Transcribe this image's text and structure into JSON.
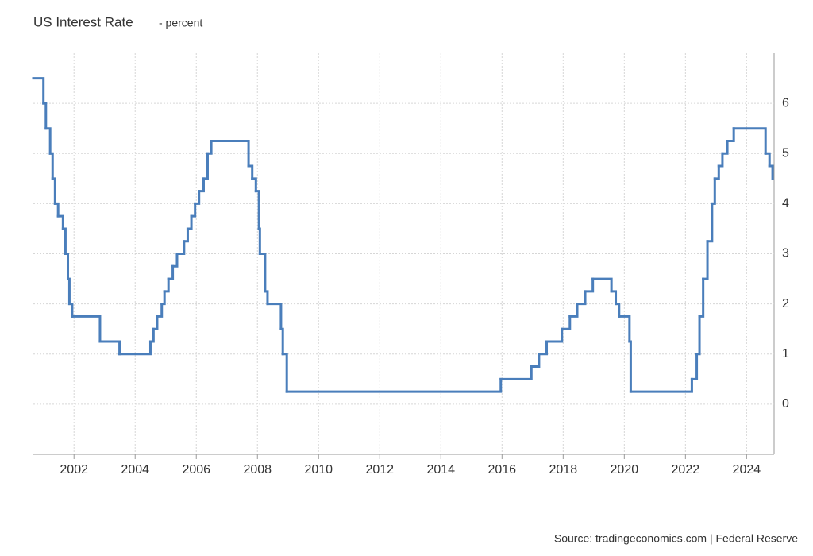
{
  "chart_data": {
    "type": "line",
    "step": "after",
    "title": "US Interest Rate",
    "subtitle": "- percent",
    "source": "Source: tradingeconomics.com | Federal Reserve",
    "color": "#4a7ebb",
    "grid": true,
    "xlim": [
      2000.67,
      2024.9
    ],
    "xticks": [
      2002,
      2004,
      2006,
      2008,
      2010,
      2012,
      2014,
      2016,
      2018,
      2020,
      2022,
      2024
    ],
    "ylim": [
      -1,
      7
    ],
    "yticks": [
      0,
      1,
      2,
      3,
      4,
      5,
      6
    ],
    "x": [
      2000.67,
      2001.0,
      2001.08,
      2001.22,
      2001.3,
      2001.38,
      2001.48,
      2001.64,
      2001.72,
      2001.8,
      2001.85,
      2001.94,
      2002.85,
      2003.49,
      2004.5,
      2004.6,
      2004.72,
      2004.87,
      2004.96,
      2005.09,
      2005.23,
      2005.37,
      2005.6,
      2005.72,
      2005.84,
      2005.96,
      2006.09,
      2006.24,
      2006.37,
      2006.49,
      2007.71,
      2007.83,
      2007.95,
      2008.05,
      2008.08,
      2008.25,
      2008.33,
      2008.77,
      2008.83,
      2008.96,
      2015.96,
      2016.96,
      2017.21,
      2017.46,
      2017.96,
      2018.22,
      2018.46,
      2018.72,
      2018.97,
      2019.58,
      2019.72,
      2019.83,
      2020.17,
      2020.21,
      2022.21,
      2022.37,
      2022.46,
      2022.58,
      2022.72,
      2022.87,
      2022.96,
      2023.09,
      2023.21,
      2023.37,
      2023.58,
      2024.62,
      2024.75,
      2024.85
    ],
    "values": [
      6.5,
      6.0,
      5.5,
      5.0,
      4.5,
      4.0,
      3.75,
      3.5,
      3.0,
      2.5,
      2.0,
      1.75,
      1.25,
      1.0,
      1.25,
      1.5,
      1.75,
      2.0,
      2.25,
      2.5,
      2.75,
      3.0,
      3.25,
      3.5,
      3.75,
      4.0,
      4.25,
      4.5,
      5.0,
      5.25,
      4.75,
      4.5,
      4.25,
      3.5,
      3.0,
      2.25,
      2.0,
      1.5,
      1.0,
      0.25,
      0.5,
      0.75,
      1.0,
      1.25,
      1.5,
      1.75,
      2.0,
      2.25,
      2.5,
      2.25,
      2.0,
      1.75,
      1.25,
      0.25,
      0.5,
      1.0,
      1.75,
      2.5,
      3.25,
      4.0,
      4.5,
      4.75,
      5.0,
      5.25,
      5.5,
      5.0,
      4.75,
      4.5
    ]
  }
}
